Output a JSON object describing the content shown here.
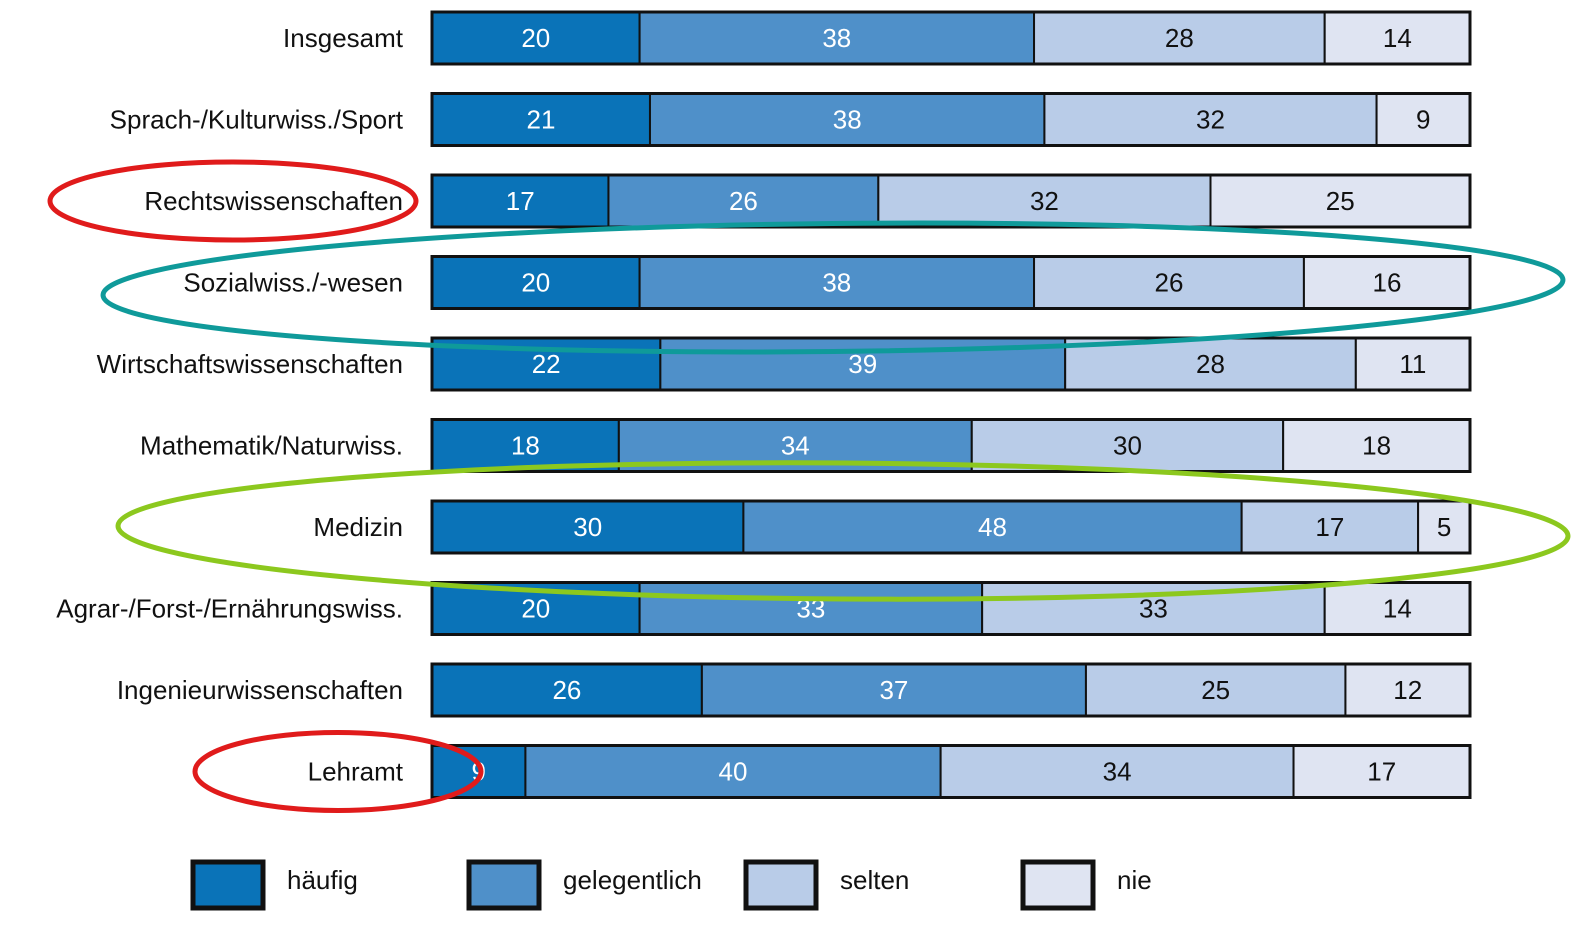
{
  "chart_data": {
    "type": "bar",
    "orientation": "horizontal",
    "stacked": true,
    "xlim": [
      0,
      100
    ],
    "categories": [
      "Insgesamt",
      "Sprach-/Kulturwiss./Sport",
      "Rechtswissenschaften",
      "Sozialwiss./-wesen",
      "Wirtschaftswissenschaften",
      "Mathematik/Naturwiss.",
      "Medizin",
      "Agrar-/Forst-/Ernährungswiss.",
      "Ingenieurwissenschaften",
      "Lehramt"
    ],
    "series": [
      {
        "name": "häufig",
        "color": "#0a73b8",
        "text_color": "#ffffff",
        "values": [
          20,
          21,
          17,
          20,
          22,
          18,
          30,
          20,
          26,
          9
        ]
      },
      {
        "name": "gelegentlich",
        "color": "#4f90c9",
        "text_color": "#ffffff",
        "values": [
          38,
          38,
          26,
          38,
          39,
          34,
          48,
          33,
          37,
          40
        ]
      },
      {
        "name": "selten",
        "color": "#b9cce8",
        "text_color": "#111111",
        "values": [
          28,
          32,
          32,
          26,
          28,
          30,
          17,
          33,
          25,
          34
        ]
      },
      {
        "name": "nie",
        "color": "#dfe4f2",
        "text_color": "#111111",
        "values": [
          14,
          9,
          25,
          16,
          11,
          18,
          5,
          14,
          12,
          17
        ]
      }
    ],
    "legend_position": "bottom",
    "annotations": [
      {
        "type": "ellipse",
        "color": "#e01b1b",
        "target": "Rechtswissenschaften"
      },
      {
        "type": "ellipse",
        "color": "#0f9a9a",
        "target": "Sozialwiss./-wesen"
      },
      {
        "type": "ellipse",
        "color": "#8cc81e",
        "target": "Medizin"
      },
      {
        "type": "ellipse",
        "color": "#e01b1b",
        "target": "Lehramt"
      }
    ]
  }
}
